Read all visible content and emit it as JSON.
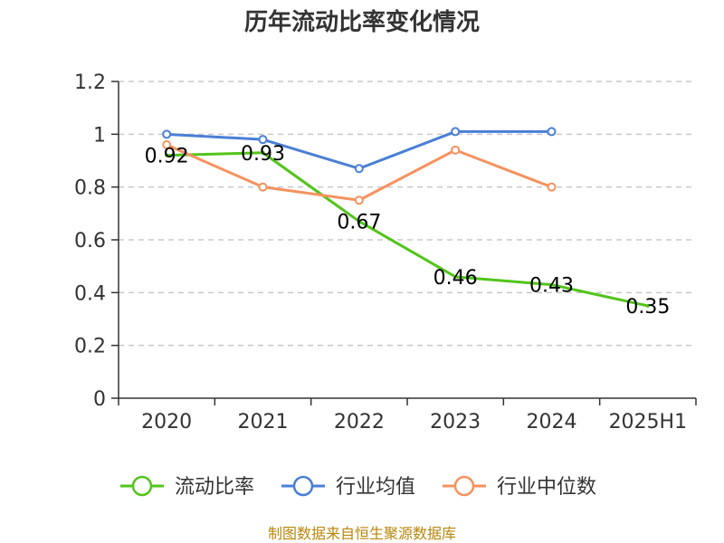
{
  "chart_data": {
    "type": "line",
    "title": "历年流动比率变化情况",
    "categories": [
      "2020",
      "2021",
      "2022",
      "2023",
      "2024",
      "2025H1"
    ],
    "ylim": [
      0,
      1.2
    ],
    "yticks": [
      "0",
      "0.2",
      "0.4",
      "0.6",
      "0.8",
      "1",
      "1.2"
    ],
    "ytick_values": [
      0,
      0.2,
      0.4,
      0.6,
      0.8,
      1.0,
      1.2
    ],
    "grid": true,
    "legend_position": "bottom",
    "series": [
      {
        "name": "流动比率",
        "color": "#52c41a",
        "values": [
          0.92,
          0.93,
          0.67,
          0.46,
          0.43,
          0.35
        ],
        "labels": [
          "0.92",
          "0.93",
          "0.67",
          "0.46",
          "0.43",
          "0.35"
        ],
        "show_markers": false
      },
      {
        "name": "行业均值",
        "color": "#4a7fd6",
        "values": [
          1.0,
          0.98,
          0.87,
          1.01,
          1.01,
          null
        ],
        "show_markers": true
      },
      {
        "name": "行业中位数",
        "color": "#f5925e",
        "values": [
          0.96,
          0.8,
          0.75,
          0.94,
          0.8,
          null
        ],
        "show_markers": true
      }
    ]
  },
  "source": "制图数据来自恒生聚源数据库"
}
